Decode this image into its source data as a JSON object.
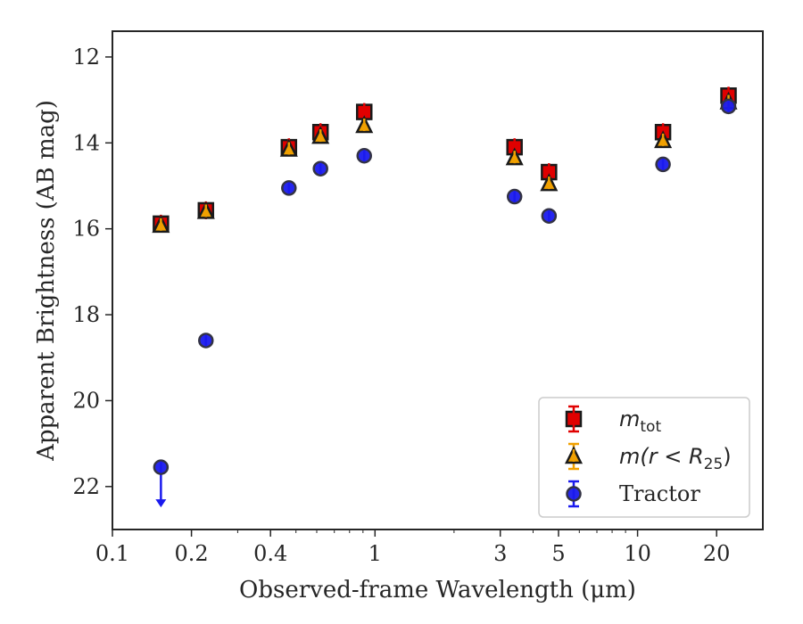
{
  "chart_data": {
    "type": "scatter",
    "xlabel": "Observed-frame Wavelength (μm)",
    "ylabel": "Apparent Brightness (AB mag)",
    "x_scale": "log",
    "xlim": [
      0.1,
      30
    ],
    "ylim": [
      23,
      11.4
    ],
    "y_inverted": true,
    "x_ticks": [
      {
        "value": 0.1,
        "label": "0.1"
      },
      {
        "value": 0.2,
        "label": "0.2"
      },
      {
        "value": 0.4,
        "label": "0.4"
      },
      {
        "value": 1,
        "label": "1"
      },
      {
        "value": 3,
        "label": "3"
      },
      {
        "value": 5,
        "label": "5"
      },
      {
        "value": 10,
        "label": "10"
      },
      {
        "value": 20,
        "label": "20"
      }
    ],
    "y_ticks": [
      {
        "value": 12,
        "label": "12"
      },
      {
        "value": 14,
        "label": "14"
      },
      {
        "value": 16,
        "label": "16"
      },
      {
        "value": 18,
        "label": "18"
      },
      {
        "value": 20,
        "label": "20"
      },
      {
        "value": 22,
        "label": "22"
      }
    ],
    "legend_position": "lower-right",
    "series": [
      {
        "name": "m_tot",
        "legend_label": {
          "main": "m",
          "sub": "tot"
        },
        "marker": "square",
        "color": "#e00000",
        "errorbar_color": "#e00000",
        "x": [
          0.153,
          0.227,
          0.47,
          0.62,
          0.91,
          3.4,
          4.6,
          12.5,
          22.2
        ],
        "y": [
          15.88,
          15.57,
          14.1,
          13.75,
          13.28,
          14.1,
          14.68,
          13.75,
          12.9
        ]
      },
      {
        "name": "m(r < R25)",
        "legend_label": {
          "main": "m(r < R",
          "sub": "25",
          "tail": ")"
        },
        "marker": "triangle",
        "color": "#f0a000",
        "errorbar_color": "#f0a000",
        "x": [
          0.153,
          0.227,
          0.47,
          0.62,
          0.91,
          3.4,
          4.6,
          12.5,
          22.2
        ],
        "y": [
          15.92,
          15.6,
          14.15,
          13.85,
          13.6,
          14.35,
          14.95,
          13.95,
          13.05
        ]
      },
      {
        "name": "Tractor",
        "legend_label": {
          "main": "Tractor"
        },
        "marker": "circle",
        "color": "#1a1aee",
        "errorbar_color": "#1a1aee",
        "x": [
          0.227,
          0.47,
          0.62,
          0.91,
          3.4,
          4.6,
          12.5,
          22.2
        ],
        "y": [
          18.6,
          15.05,
          14.6,
          14.3,
          15.25,
          15.7,
          14.5,
          13.15
        ],
        "upper_limits": [
          {
            "x": 0.153,
            "y": 21.55
          }
        ]
      }
    ]
  }
}
